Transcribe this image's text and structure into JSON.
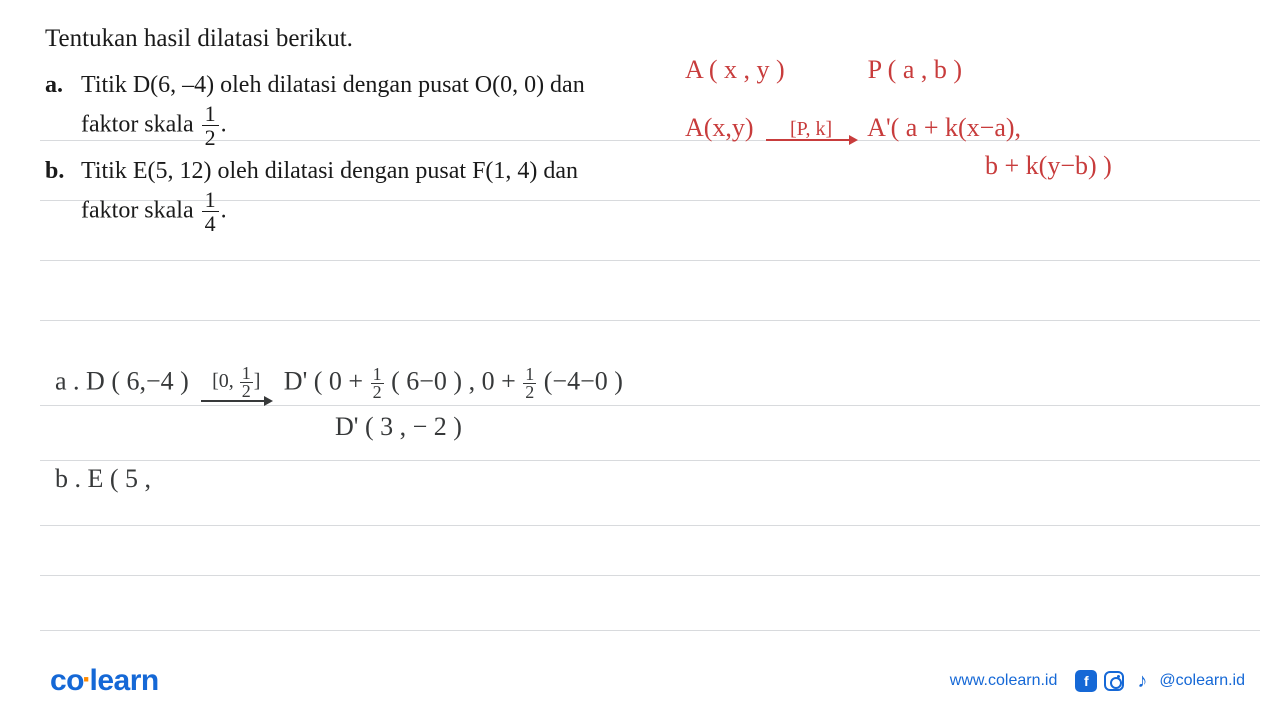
{
  "lines": {
    "color": "#d8dadd",
    "positions": [
      140,
      200,
      260,
      320,
      405,
      460,
      525,
      575,
      630
    ]
  },
  "question": {
    "title": "Tentukan hasil dilatasi berikut.",
    "items": [
      {
        "letter": "a.",
        "text_before": "Titik D(6, –4) oleh dilatasi dengan pusat O(0, 0) dan faktor skala ",
        "frac_num": "1",
        "frac_den": "2",
        "text_after": "."
      },
      {
        "letter": "b.",
        "text_before": "Titik E(5, 12) oleh dilatasi dengan pusat F(1, 4) dan faktor skala ",
        "frac_num": "1",
        "frac_den": "4",
        "text_after": "."
      }
    ]
  },
  "red_notes": {
    "color": "#c83c3c",
    "line1_left": "A ( x , y )",
    "line1_right": "P ( a , b )",
    "line2_left": "A(x,y)",
    "arrow_label": "[P, k]",
    "line2_right": "A'( a + k(x−a),",
    "line3": "b + k(y−b) )"
  },
  "work": {
    "color": "#37393a",
    "a_left": "a .  D ( 6,−4 )",
    "a_arrow_num": "[0, ",
    "a_arrow_frac_n": "1",
    "a_arrow_frac_d": "2",
    "a_arrow_close": "]",
    "a_right_1a": "D' ( 0 + ",
    "a_right_1b": " ( 6−0 )  ,  0 + ",
    "a_right_1c": " (−4−0 )",
    "a_frac_n": "1",
    "a_frac_d": "2",
    "a_line2": "D'  ( 3 , − 2 )",
    "b_left": "b .  E ( 5 ,"
  },
  "footer": {
    "logo_co": "co",
    "logo_dot": "·",
    "logo_learn": "learn",
    "url": "www.colearn.id",
    "handle": "@colearn.id"
  }
}
